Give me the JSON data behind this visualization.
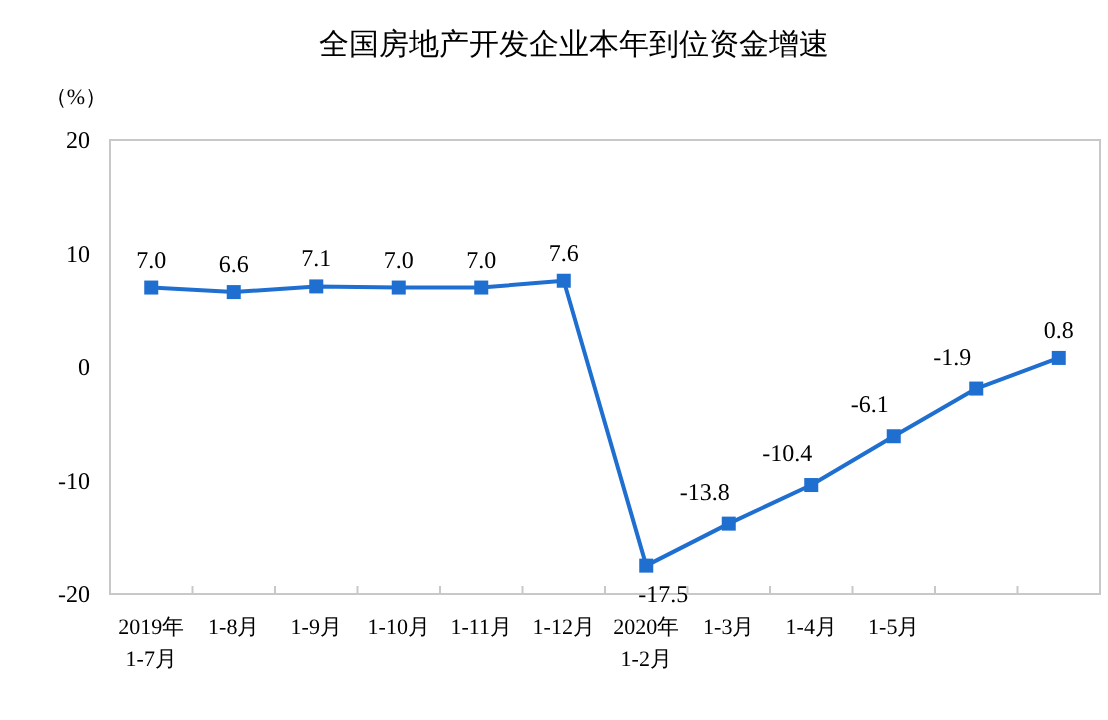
{
  "chart_data": {
    "type": "line",
    "title": "全国房地产开发企业本年到位资金增速",
    "ylabel": "（%）",
    "categories": [
      "2019年\n1-7月",
      "1-8月",
      "1-9月",
      "1-10月",
      "1-11月",
      "1-12月",
      "2020年\n1-2月",
      "1-3月",
      "1-4月",
      "1-5月",
      null,
      null
    ],
    "series": [
      {
        "color": "#1f6fd0",
        "values": [
          7.0,
          6.6,
          7.1,
          7.0,
          7.0,
          7.6,
          -17.5,
          -13.8,
          -10.4,
          -6.1,
          -1.9,
          0.8
        ],
        "value_labels": [
          "7.0",
          "6.6",
          "7.1",
          "7.0",
          "7.0",
          "7.6",
          "-17.5",
          "-13.8",
          "-10.4",
          "-6.1",
          "-1.9",
          "0.8"
        ]
      }
    ],
    "ylim": [
      -20,
      20
    ],
    "yticks": [
      -20,
      -10,
      0,
      10,
      20
    ],
    "marker": "square",
    "grid": false
  }
}
